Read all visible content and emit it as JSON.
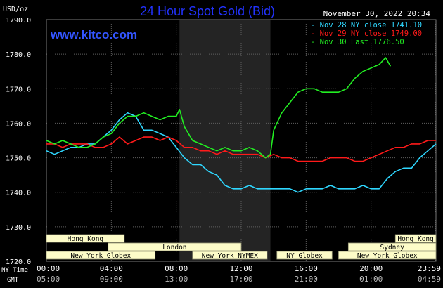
{
  "title": "24 Hour Spot Gold (Bid)",
  "watermark": "www.kitco.com",
  "y_unit": "USD/oz",
  "timestamp": "November 30, 2022 20:34",
  "legend": [
    {
      "label": "Nov 28 NY close 1741.10",
      "color": "#2fd7ff"
    },
    {
      "label": "Nov 29 NY close 1749.00",
      "color": "#ff1a1a"
    },
    {
      "label": "Nov 30 Last 1776.50",
      "color": "#22ee22"
    }
  ],
  "time_rows": {
    "ny_label": "NY Time",
    "gmt_label": "GMT",
    "ny": [
      "00:00",
      "04:00",
      "08:00",
      "12:00",
      "16:00",
      "20:00",
      "23:59"
    ],
    "gmt": [
      "05:00",
      "09:00",
      "13:00",
      "17:00",
      "21:00",
      "01:00",
      "04:59"
    ]
  },
  "sessions": [
    {
      "label": "Hong Kong",
      "start": 0,
      "end": 4.8,
      "row": 0
    },
    {
      "label": "Hong Kong",
      "start": 21.5,
      "end": 24,
      "row": 0
    },
    {
      "label": "London",
      "start": 3.8,
      "end": 12,
      "row": 1
    },
    {
      "label": "Sydney",
      "start": 18.6,
      "end": 24,
      "row": 1
    },
    {
      "label": "New York Globex",
      "start": 0,
      "end": 6.7,
      "row": 2
    },
    {
      "label": "New York NYMEX",
      "start": 9,
      "end": 13.6,
      "row": 2
    },
    {
      "label": "NY Globex",
      "start": 14.2,
      "end": 17.6,
      "row": 2
    },
    {
      "label": "New York Globex",
      "start": 18,
      "end": 24,
      "row": 2
    }
  ],
  "colors": {
    "background": "#000000",
    "grid": "#606060",
    "axis_text": "#ffffff",
    "title": "#2233ff",
    "watermark": "#3355ff",
    "shade": "#242424",
    "session_fill": "#fdfcc8",
    "session_text": "#000000"
  },
  "chart_data": {
    "type": "line",
    "ylim": [
      1720,
      1790
    ],
    "yticks": [
      1720,
      1730,
      1740,
      1750,
      1760,
      1770,
      1780,
      1790
    ],
    "ytick_labels": [
      "1720.0",
      "1730.0",
      "1740.0",
      "1750.0",
      "1760.0",
      "1770.0",
      "1780.0",
      "1790.0"
    ],
    "xlim": [
      0,
      24
    ],
    "xticks": [
      0,
      4,
      8,
      12,
      16,
      20,
      23.98
    ],
    "shaded_interval_hours": [
      8.2,
      13.8
    ],
    "x_unit": "hours (NY time)",
    "series": [
      {
        "name": "Nov 28",
        "color": "#2fd7ff",
        "x": [
          0,
          0.5,
          1,
          1.5,
          2,
          2.5,
          3,
          3.5,
          4,
          4.5,
          5,
          5.5,
          6,
          6.5,
          7,
          7.5,
          8,
          8.5,
          9,
          9.5,
          10,
          10.5,
          11,
          11.5,
          12,
          12.5,
          13,
          13.5,
          14,
          14.5,
          15,
          15.5,
          16,
          16.5,
          17,
          17.5,
          18,
          18.5,
          19,
          19.5,
          20,
          20.5,
          21,
          21.5,
          22,
          22.5,
          23,
          23.5,
          24
        ],
        "y": [
          1752,
          1751,
          1752,
          1753,
          1753,
          1754,
          1754,
          1756,
          1758,
          1761,
          1763,
          1762,
          1758,
          1758,
          1757,
          1756,
          1753,
          1750,
          1748,
          1748,
          1746,
          1745,
          1742,
          1741,
          1741,
          1742,
          1741,
          1741,
          1741,
          1741,
          1741,
          1740,
          1741,
          1741,
          1741,
          1742,
          1741,
          1741,
          1741,
          1742,
          1741,
          1741,
          1744,
          1746,
          1747,
          1747,
          1750,
          1752,
          1754
        ]
      },
      {
        "name": "Nov 29",
        "color": "#ff1a1a",
        "x": [
          0,
          0.5,
          1,
          1.5,
          2,
          2.5,
          3,
          3.5,
          4,
          4.5,
          5,
          5.5,
          6,
          6.5,
          7,
          7.5,
          8,
          8.5,
          9,
          9.5,
          10,
          10.5,
          11,
          11.5,
          12,
          12.5,
          13,
          13.5,
          14,
          14.5,
          15,
          15.5,
          16,
          16.5,
          17,
          17.5,
          18,
          18.5,
          19,
          19.5,
          20,
          20.5,
          21,
          21.5,
          22,
          22.5,
          23,
          23.5,
          24
        ],
        "y": [
          1754,
          1754,
          1753,
          1754,
          1754,
          1754,
          1753,
          1753,
          1754,
          1756,
          1754,
          1755,
          1756,
          1756,
          1755,
          1756,
          1755,
          1753,
          1753,
          1752,
          1752,
          1751,
          1752,
          1751,
          1751,
          1751,
          1751,
          1750,
          1751,
          1750,
          1750,
          1749,
          1749,
          1749,
          1749,
          1750,
          1750,
          1750,
          1749,
          1749,
          1750,
          1751,
          1752,
          1753,
          1753,
          1754,
          1754,
          1755,
          1755
        ]
      },
      {
        "name": "Nov 30",
        "color": "#22ee22",
        "x": [
          0,
          0.5,
          1,
          1.5,
          2,
          2.5,
          3,
          3.5,
          4,
          4.5,
          5,
          5.5,
          6,
          6.5,
          7,
          7.5,
          8,
          8.2,
          8.5,
          9,
          9.5,
          10,
          10.5,
          11,
          11.5,
          12,
          12.5,
          13,
          13.5,
          13.8,
          14,
          14.5,
          15,
          15.5,
          16,
          16.5,
          17,
          17.5,
          18,
          18.5,
          19,
          19.5,
          20,
          20.5,
          20.9,
          21.2
        ],
        "y": [
          1755,
          1754,
          1755,
          1754,
          1753,
          1753,
          1754,
          1756,
          1757,
          1760,
          1762,
          1762,
          1763,
          1762,
          1761,
          1762,
          1762,
          1764,
          1759,
          1755,
          1754,
          1753,
          1752,
          1753,
          1752,
          1752,
          1753,
          1752,
          1750,
          1751,
          1758,
          1763,
          1766,
          1769,
          1770,
          1770,
          1769,
          1769,
          1769,
          1770,
          1773,
          1775,
          1776,
          1777,
          1779,
          1776.5
        ]
      }
    ]
  }
}
